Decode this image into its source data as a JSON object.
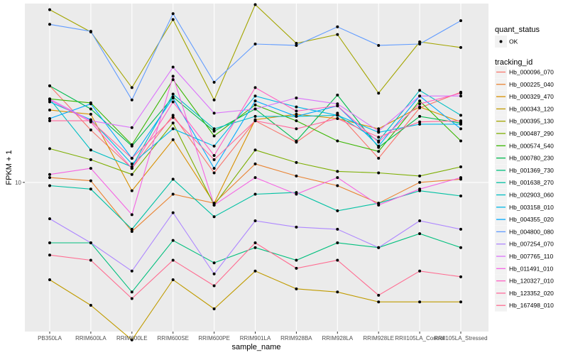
{
  "chart_data": {
    "type": "line",
    "title": "",
    "xlabel": "sample_name",
    "ylabel": "FPKM + 1",
    "y_scale": "log10",
    "ylim": [
      4.0,
      30.0
    ],
    "y_ticks": [
      10
    ],
    "y_tick_labels": [
      "10"
    ],
    "grid": true,
    "legend_position": "right",
    "categories": [
      "PB350LA",
      "RRIM600LA",
      "RRIM600LE",
      "RRIM600SE",
      "RRIM600PE",
      "RRIM901LA",
      "RRIM928BA",
      "RRIM928LA",
      "RRIM928LE",
      "RRII105LA_Control",
      "RRII105LA_Stressed"
    ],
    "point_legend": {
      "title": "quant_status",
      "entries": [
        "OK"
      ]
    },
    "line_legend_title": "tracking_id",
    "series": [
      {
        "name": "Hb_000096_070",
        "color": "#F8766D",
        "values": [
          18.1,
          13.8,
          10.9,
          15.1,
          10.6,
          14.6,
          12.8,
          15.3,
          11.6,
          15.8,
          17.4
        ]
      },
      {
        "name": "Hb_000225_040",
        "color": "#EA8331",
        "values": [
          10.3,
          10.1,
          7.4,
          9.3,
          8.8,
          11.2,
          10.4,
          9.8,
          8.8,
          10.0,
          10.2
        ]
      },
      {
        "name": "Hb_000329_470",
        "color": "#D89000",
        "values": [
          15.6,
          15.2,
          9.5,
          13.0,
          8.8,
          14.7,
          15.2,
          14.8,
          13.9,
          15.9,
          14.5
        ]
      },
      {
        "name": "Hb_000343_120",
        "color": "#C09B00",
        "values": [
          5.5,
          4.7,
          3.8,
          5.5,
          4.6,
          5.8,
          5.2,
          5.1,
          4.8,
          4.8,
          4.8
        ]
      },
      {
        "name": "Hb_000395_130",
        "color": "#A3A500",
        "values": [
          28.9,
          25.2,
          17.9,
          27.2,
          16.6,
          29.8,
          23.5,
          24.8,
          17.3,
          23.7,
          22.9
        ]
      },
      {
        "name": "Hb_000487_290",
        "color": "#7CAE00",
        "values": [
          12.3,
          11.5,
          10.5,
          14.4,
          8.7,
          12.2,
          11.3,
          10.7,
          10.6,
          10.4,
          11.0
        ]
      },
      {
        "name": "Hb_000574_540",
        "color": "#39B600",
        "values": [
          16.7,
          16.3,
          12.6,
          18.8,
          13.3,
          16.1,
          14.6,
          12.9,
          12.1,
          16.5,
          12.9
        ]
      },
      {
        "name": "Hb_000780_230",
        "color": "#00BB4E",
        "values": [
          18.1,
          15.7,
          12.5,
          16.9,
          13.7,
          15.7,
          12.9,
          17.1,
          12.4,
          15.0,
          14.4
        ]
      },
      {
        "name": "Hb_001369_730",
        "color": "#00BF7D",
        "values": [
          6.9,
          6.9,
          5.1,
          7.0,
          6.1,
          6.7,
          6.2,
          6.9,
          6.7,
          7.3,
          6.7
        ]
      },
      {
        "name": "Hb_001638_270",
        "color": "#00C1A3",
        "values": [
          9.8,
          9.6,
          7.5,
          10.2,
          8.1,
          9.3,
          9.4,
          8.4,
          8.8,
          9.5,
          9.2
        ]
      },
      {
        "name": "Hb_002903_060",
        "color": "#00BFC4",
        "values": [
          16.7,
          12.2,
          11.0,
          17.2,
          13.9,
          15.0,
          15.0,
          15.1,
          12.9,
          17.6,
          15.1
        ]
      },
      {
        "name": "Hb_003158_010",
        "color": "#00B8E7",
        "values": [
          16.4,
          14.7,
          11.2,
          13.9,
          12.5,
          17.0,
          15.9,
          15.1,
          13.6,
          14.3,
          14.3
        ]
      },
      {
        "name": "Hb_004355_020",
        "color": "#00A9FF",
        "values": [
          14.8,
          16.2,
          11.6,
          16.8,
          10.9,
          16.5,
          15.0,
          16.0,
          12.5,
          17.0,
          13.9
        ]
      },
      {
        "name": "Hb_004800_080",
        "color": "#619CFF",
        "values": [
          26.4,
          25.3,
          16.6,
          28.2,
          18.5,
          23.4,
          23.2,
          26.0,
          23.2,
          23.4,
          27.0
        ]
      },
      {
        "name": "Hb_007254_070",
        "color": "#AE87FF",
        "values": [
          8.0,
          6.9,
          5.8,
          8.3,
          5.7,
          7.9,
          7.6,
          7.5,
          6.7,
          7.9,
          7.5
        ]
      },
      {
        "name": "Hb_007765_110",
        "color": "#DB72FB",
        "values": [
          16.7,
          14.6,
          14.0,
          20.3,
          15.3,
          15.7,
          16.8,
          16.2,
          13.7,
          17.0,
          17.0
        ]
      },
      {
        "name": "Hb_011491_010",
        "color": "#F564E3",
        "values": [
          10.5,
          10.9,
          8.2,
          19.2,
          8.7,
          10.3,
          9.3,
          10.3,
          8.7,
          9.6,
          10.3
        ]
      },
      {
        "name": "Hb_120327_010",
        "color": "#FF61C3",
        "values": [
          16.6,
          14.5,
          10.9,
          16.4,
          11.8,
          17.9,
          15.5,
          16.0,
          12.8,
          16.2,
          17.3
        ]
      },
      {
        "name": "Hb_123352_020",
        "color": "#FF699C",
        "values": [
          14.6,
          14.6,
          11.6,
          14.9,
          11.5,
          14.6,
          13.9,
          14.8,
          13.2,
          14.5,
          14.6
        ]
      },
      {
        "name": "Hb_167498_010",
        "color": "#FF6C91",
        "values": [
          6.4,
          6.2,
          4.9,
          6.2,
          5.3,
          6.9,
          5.9,
          6.2,
          5.0,
          5.8,
          5.6
        ]
      }
    ]
  }
}
